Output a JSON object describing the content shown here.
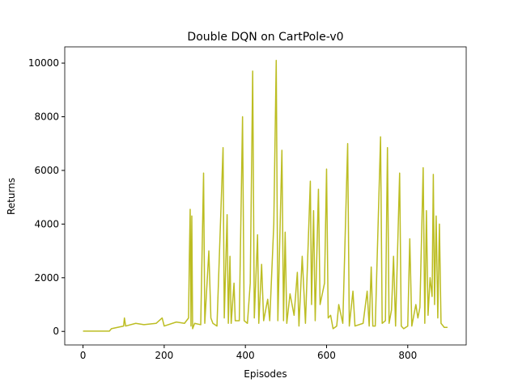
{
  "chart_data": {
    "type": "line",
    "title": "Double DQN on CartPole-v0",
    "x_label": "Episodes",
    "y_label": "Returns",
    "xlim": [
      -45,
      944
    ],
    "ylim": [
      -505,
      10605
    ],
    "xticks": [
      0,
      200,
      400,
      600,
      800
    ],
    "yticks": [
      0,
      2000,
      4000,
      6000,
      8000,
      10000
    ],
    "series": [
      {
        "name": "Returns",
        "color": "#bcbd22",
        "x": [
          0,
          30,
          65,
          70,
          100,
          102,
          105,
          130,
          150,
          180,
          195,
          200,
          230,
          250,
          260,
          262,
          264,
          266,
          268,
          270,
          275,
          290,
          297,
          300,
          310,
          315,
          320,
          330,
          345,
          348,
          355,
          358,
          362,
          365,
          372,
          375,
          385,
          393,
          397,
          405,
          412,
          418,
          422,
          430,
          433,
          440,
          445,
          455,
          460,
          470,
          476,
          480,
          490,
          494,
          498,
          502,
          510,
          520,
          528,
          532,
          540,
          548,
          560,
          563,
          568,
          572,
          580,
          584,
          595,
          600,
          604,
          610,
          616,
          625,
          630,
          640,
          652,
          656,
          665,
          670,
          690,
          700,
          705,
          710,
          714,
          720,
          733,
          737,
          745,
          750,
          754,
          760,
          765,
          770,
          780,
          784,
          790,
          800,
          805,
          810,
          820,
          825,
          830,
          838,
          842,
          846,
          850,
          855,
          860,
          863,
          866,
          870,
          874,
          878,
          882,
          890,
          898
        ],
        "values": [
          10,
          10,
          10,
          100,
          200,
          500,
          200,
          300,
          250,
          300,
          500,
          200,
          350,
          300,
          500,
          2800,
          4550,
          200,
          4300,
          100,
          300,
          250,
          5900,
          300,
          3000,
          500,
          300,
          200,
          6850,
          500,
          4350,
          300,
          2800,
          300,
          1800,
          400,
          400,
          8000,
          400,
          300,
          1800,
          9700,
          500,
          3600,
          300,
          2500,
          400,
          1200,
          400,
          4000,
          10100,
          400,
          6750,
          400,
          3700,
          300,
          1400,
          600,
          2200,
          200,
          2800,
          300,
          5600,
          1000,
          4500,
          400,
          5300,
          1000,
          1800,
          6050,
          500,
          600,
          100,
          200,
          1000,
          300,
          7000,
          200,
          1500,
          200,
          300,
          1500,
          200,
          2400,
          200,
          200,
          7250,
          300,
          400,
          6850,
          300,
          800,
          2800,
          200,
          5900,
          200,
          100,
          200,
          3450,
          200,
          1000,
          500,
          900,
          6100,
          300,
          4500,
          600,
          2000,
          1300,
          5850,
          1000,
          4300,
          500,
          4000,
          300,
          150,
          150
        ]
      }
    ]
  }
}
